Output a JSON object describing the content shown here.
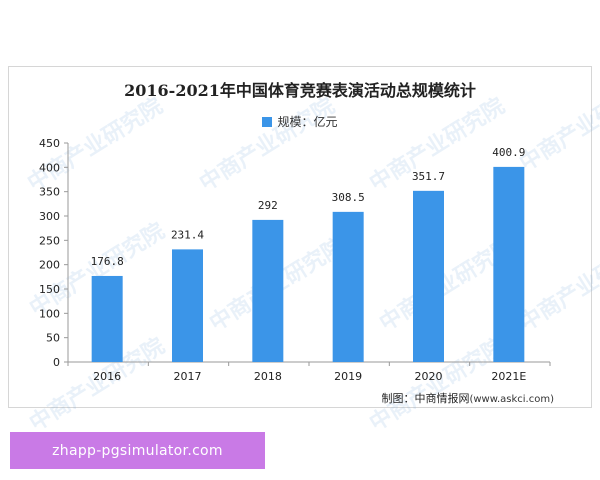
{
  "watermark_text": "中商产业研究院",
  "chart_data": {
    "type": "bar",
    "title": "2016-2021年中国体育竞赛表演活动总规模统计",
    "legend": [
      "规模：亿元"
    ],
    "legend_placement": "top-center",
    "categories": [
      "2016",
      "2017",
      "2018",
      "2019",
      "2020",
      "2021E"
    ],
    "series": [
      {
        "name": "规模：亿元",
        "values": [
          176.8,
          231.4,
          292,
          308.5,
          351.7,
          400.9
        ],
        "labels": [
          "176.8",
          "231.4",
          "292",
          "308.5",
          "351.7",
          "400.9"
        ],
        "color": "#3b95e8"
      }
    ],
    "ylim": [
      0,
      450
    ],
    "yticks": [
      0,
      50,
      100,
      150,
      200,
      250,
      300,
      350,
      400,
      450
    ],
    "grid": false
  },
  "source": {
    "label": "制图：中商情报网",
    "url": "(www.askci.com)"
  },
  "banner": {
    "text": "zhapp-pgsimulator.com",
    "color": "#c97ae6"
  }
}
